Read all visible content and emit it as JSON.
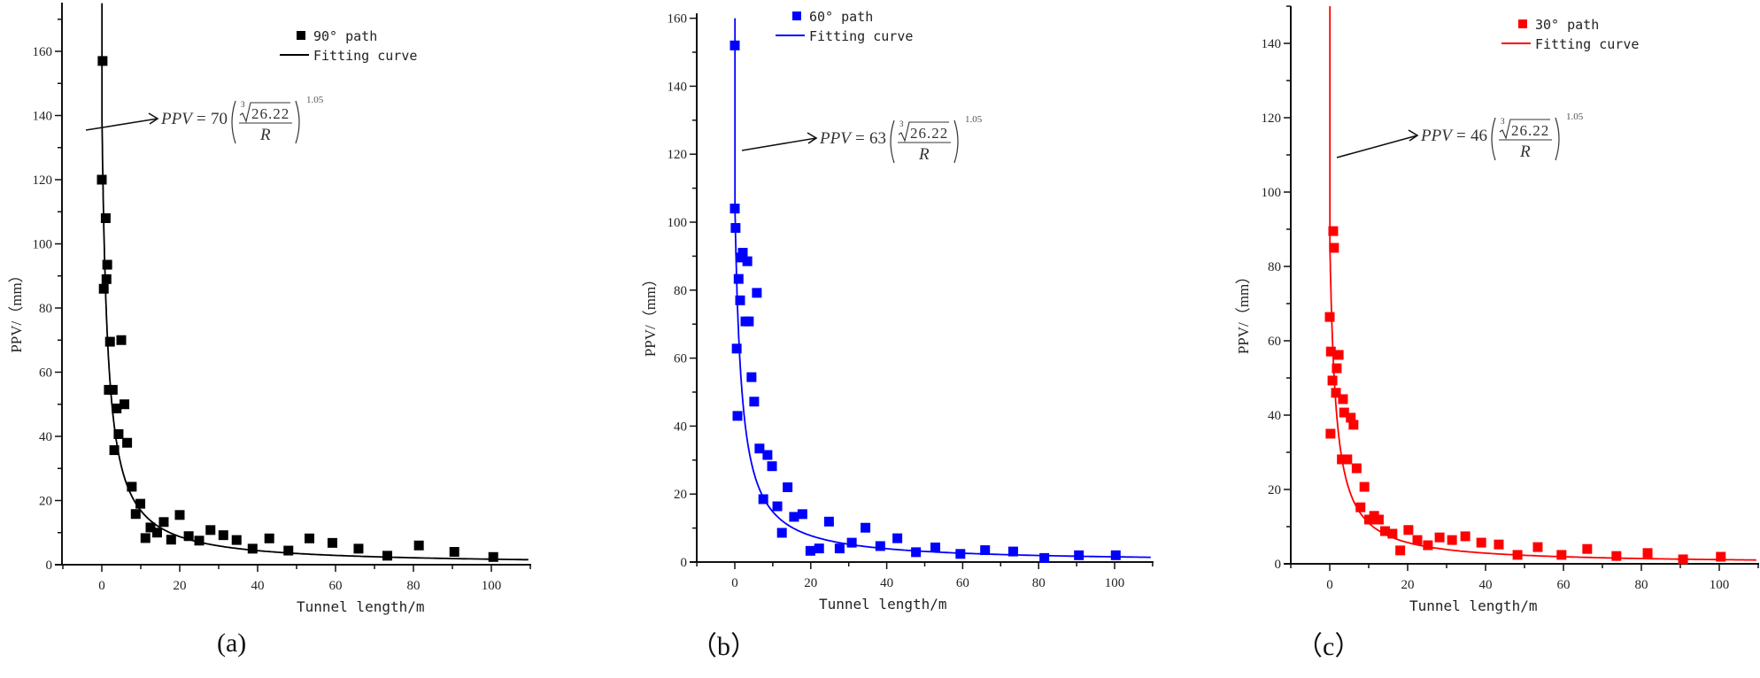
{
  "figure": {
    "panels": [
      {
        "id": "a",
        "label": "(a)",
        "series_color": "#000000",
        "curve_color": "#000000",
        "legend": {
          "series_label": "90° path",
          "curve_label": "Fitting curve"
        },
        "equation": {
          "prefix": "PPV",
          "equals": "=",
          "coef": "70",
          "root_index": "3",
          "radicand": "26.22",
          "denominator": "R",
          "exponent": "1.05"
        },
        "xlabel": "Tunnel length/m",
        "ylabel": "PPV/（mm）"
      },
      {
        "id": "b",
        "label": "（b）",
        "series_color": "#0000ff",
        "curve_color": "#0000ff",
        "legend": {
          "series_label": "60° path",
          "curve_label": "Fitting curve"
        },
        "equation": {
          "prefix": "PPV",
          "equals": "=",
          "coef": "63",
          "root_index": "3",
          "radicand": "26.22",
          "denominator": "R",
          "exponent": "1.05"
        },
        "xlabel": "Tunnel length/m",
        "ylabel": "PPV/（mm）"
      },
      {
        "id": "c",
        "label": "（c）",
        "series_color": "#ff0000",
        "curve_color": "#ff0000",
        "legend": {
          "series_label": "30° path",
          "curve_label": "Fitting curve"
        },
        "equation": {
          "prefix": "PPV",
          "equals": "=",
          "coef": "46",
          "root_index": "3",
          "radicand": "26.22",
          "denominator": "R",
          "exponent": "1.05"
        },
        "xlabel": "Tunnel length/m",
        "ylabel": "PPV/（mm）"
      }
    ]
  },
  "chart_data": [
    {
      "type": "scatter",
      "title": "(a)",
      "xlabel": "Tunnel length/m",
      "ylabel": "PPV/（mm）",
      "xlim": [
        -10,
        110
      ],
      "ylim": [
        0,
        175
      ],
      "xticks": [
        0,
        20,
        40,
        60,
        80,
        100
      ],
      "yticks": [
        0,
        20,
        40,
        60,
        80,
        100,
        120,
        140,
        160
      ],
      "grid": false,
      "legend_position": "upper right",
      "series": [
        {
          "name": "90° path",
          "kind": "scatter",
          "color": "#000000",
          "x": [
            0.2,
            0,
            1,
            1.4,
            1.2,
            0.5,
            2.1,
            5,
            1.8,
            2.8,
            5.8,
            3.8,
            4.3,
            6.5,
            3.2,
            7.7,
            9.9,
            8.7,
            11.2,
            12.5,
            14.2,
            15.9,
            17.8,
            20,
            22.3,
            25,
            27.9,
            31.2,
            34.6,
            38.7,
            43,
            47.9,
            53.3,
            59.2,
            65.9,
            73.3,
            81.4,
            90.5,
            100.5
          ],
          "y": [
            157,
            120,
            108,
            93.5,
            89,
            86,
            69.5,
            70,
            54.5,
            54.5,
            50,
            48.7,
            40.7,
            38,
            35.7,
            24.3,
            19,
            15.8,
            8.3,
            11.6,
            10,
            13.3,
            7.8,
            15.5,
            8.9,
            7.5,
            10.8,
            9.2,
            7.7,
            5,
            8.2,
            4.4,
            8.2,
            6.8,
            5,
            2.8,
            6,
            4,
            2.4
          ]
        },
        {
          "name": "Fitting curve",
          "kind": "line",
          "color": "#000000",
          "formula": "PPV = 70 * (26.22^(1/3) / R)^1.05",
          "coef": 70,
          "exponent": 1.05,
          "x_offset": -1.5
        }
      ],
      "annotations": [
        "PPV = 70 ( ∛26.22 / R )^1.05"
      ]
    },
    {
      "type": "scatter",
      "title": "(b)",
      "xlabel": "Tunnel length/m",
      "ylabel": "PPV/（mm）",
      "xlim": [
        -10,
        110
      ],
      "ylim": [
        0,
        160
      ],
      "xticks": [
        0,
        20,
        40,
        60,
        80,
        100
      ],
      "yticks": [
        0,
        20,
        40,
        60,
        80,
        100,
        120,
        140,
        160
      ],
      "grid": false,
      "legend_position": "upper right",
      "series": [
        {
          "name": "60° path",
          "kind": "scatter",
          "color": "#0000ff",
          "x": [
            0,
            0,
            0.2,
            2.1,
            1.6,
            3.3,
            1,
            5.8,
            1.4,
            2.8,
            3.7,
            0.5,
            4.4,
            5.1,
            0.7,
            6.5,
            8.6,
            9.8,
            13.9,
            7.5,
            11.2,
            15.6,
            17.8,
            12.4,
            24.8,
            19.9,
            22.2,
            27.6,
            30.8,
            34.4,
            38.3,
            42.8,
            47.7,
            52.8,
            59.4,
            65.9,
            73.3,
            81.5,
            90.6,
            100.3
          ],
          "y": [
            152,
            104,
            98.3,
            91,
            89.6,
            88.5,
            83.3,
            79.2,
            77,
            70.8,
            70.8,
            62.8,
            54.4,
            47.2,
            43,
            33.4,
            31.5,
            28.2,
            22,
            18.5,
            16.4,
            13.3,
            14.1,
            8.6,
            11.9,
            3.3,
            4,
            4,
            5.7,
            10.1,
            4.7,
            7,
            2.9,
            4.3,
            2.4,
            3.5,
            3.1,
            1.2,
            2,
            2
          ]
        },
        {
          "name": "Fitting curve",
          "kind": "line",
          "color": "#0000ff",
          "formula": "PPV = 63 * (26.22^(1/3) / R)^1.05",
          "coef": 63,
          "exponent": 1.05,
          "x_offset": -1.8
        }
      ],
      "annotations": [
        "PPV = 63 ( ∛26.22 / R )^1.05"
      ]
    },
    {
      "type": "scatter",
      "title": "(c)",
      "xlabel": "Tunnel length/m",
      "ylabel": "PPV/（mm）",
      "xlim": [
        -10,
        110
      ],
      "ylim": [
        0,
        150
      ],
      "xticks": [
        0,
        20,
        40,
        60,
        80,
        100
      ],
      "yticks": [
        0,
        20,
        40,
        60,
        80,
        100,
        120,
        140
      ],
      "grid": false,
      "legend_position": "upper right",
      "series": [
        {
          "name": "30° path",
          "kind": "scatter",
          "color": "#ff0000",
          "x": [
            0.9,
            1.1,
            0,
            0.3,
            2.3,
            1.8,
            0.7,
            1.6,
            3.4,
            3.7,
            5.4,
            6.1,
            0.2,
            3.1,
            4.5,
            6.9,
            8.9,
            7.9,
            10.1,
            11.4,
            12.6,
            14.2,
            16.1,
            18.1,
            20.2,
            22.5,
            25.2,
            28.2,
            31.4,
            34.8,
            38.9,
            43.4,
            48.2,
            53.4,
            59.5,
            66.1,
            73.6,
            81.6,
            90.7,
            100.4
          ],
          "y": [
            89.5,
            85,
            66.4,
            57.1,
            56.2,
            52.6,
            49.3,
            46,
            44.3,
            40.7,
            39.3,
            37.4,
            35,
            28.1,
            28.1,
            25.7,
            20.7,
            15.2,
            11.9,
            12.9,
            11.9,
            8.8,
            8.1,
            3.6,
            9.1,
            6.4,
            5,
            7.1,
            6.4,
            7.4,
            5.7,
            5.2,
            2.4,
            4.5,
            2.4,
            4,
            2.1,
            2.9,
            1.2,
            1.9
          ]
        },
        {
          "name": "Fitting curve",
          "kind": "line",
          "color": "#ff0000",
          "formula": "PPV = 46 * (26.22^(1/3) / R)^1.05",
          "coef": 46,
          "exponent": 1.05,
          "x_offset": -1.6
        }
      ],
      "annotations": [
        "PPV = 46 ( ∛26.22 / R )^1.05"
      ]
    }
  ]
}
